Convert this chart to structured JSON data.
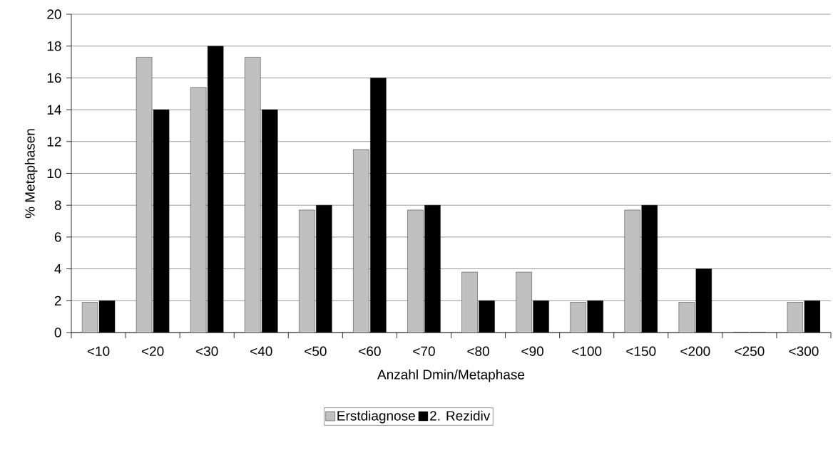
{
  "chart_data": {
    "type": "bar",
    "xlabel": "Anzahl Dmin/Metaphase",
    "ylabel": "% Metaphasen",
    "categories": [
      "<10",
      "<20",
      "<30",
      "<40",
      "<50",
      "<60",
      "<70",
      "<80",
      "<90",
      "<100",
      "<150",
      "<200",
      "<250",
      "<300"
    ],
    "series": [
      {
        "name": "Erstdiagnose",
        "color": "#c0c0c0",
        "values": [
          1.9,
          17.3,
          15.4,
          17.3,
          7.7,
          11.5,
          7.7,
          3.8,
          3.8,
          1.9,
          7.7,
          1.9,
          0,
          1.9
        ]
      },
      {
        "name": "2. Rezidiv",
        "color": "#000000",
        "values": [
          2,
          14,
          18,
          14,
          8,
          16,
          8,
          2,
          2,
          2,
          8,
          4,
          0,
          2
        ]
      }
    ],
    "ylim": [
      0,
      20
    ],
    "yticks": [
      0,
      2,
      4,
      6,
      8,
      10,
      12,
      14,
      16,
      18,
      20
    ],
    "grid": "y",
    "legend": "bottom"
  }
}
